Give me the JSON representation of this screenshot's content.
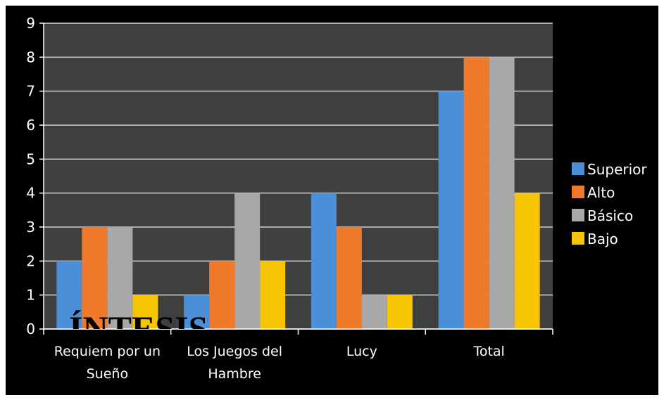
{
  "chart_data": {
    "type": "bar",
    "categories": [
      "Requiem por un Sueño",
      "Los Juegos del Hambre",
      "Lucy",
      "Total"
    ],
    "series": [
      {
        "name": "Superior",
        "color": "#4a8fd8",
        "values": [
          2,
          1,
          4,
          7
        ]
      },
      {
        "name": "Alto",
        "color": "#f07a2c",
        "values": [
          3,
          2,
          3,
          8
        ]
      },
      {
        "name": "Básico",
        "color": "#a8a8a8",
        "values": [
          3,
          4,
          1,
          8
        ]
      },
      {
        "name": "Bajo",
        "color": "#f6c400",
        "values": [
          1,
          2,
          1,
          4
        ]
      }
    ],
    "ylim": [
      0,
      9
    ],
    "yticks": [
      0,
      1,
      2,
      3,
      4,
      5,
      6,
      7,
      8,
      9
    ],
    "grid": true,
    "legend": "right",
    "annotation": "ÍNTESIS"
  }
}
